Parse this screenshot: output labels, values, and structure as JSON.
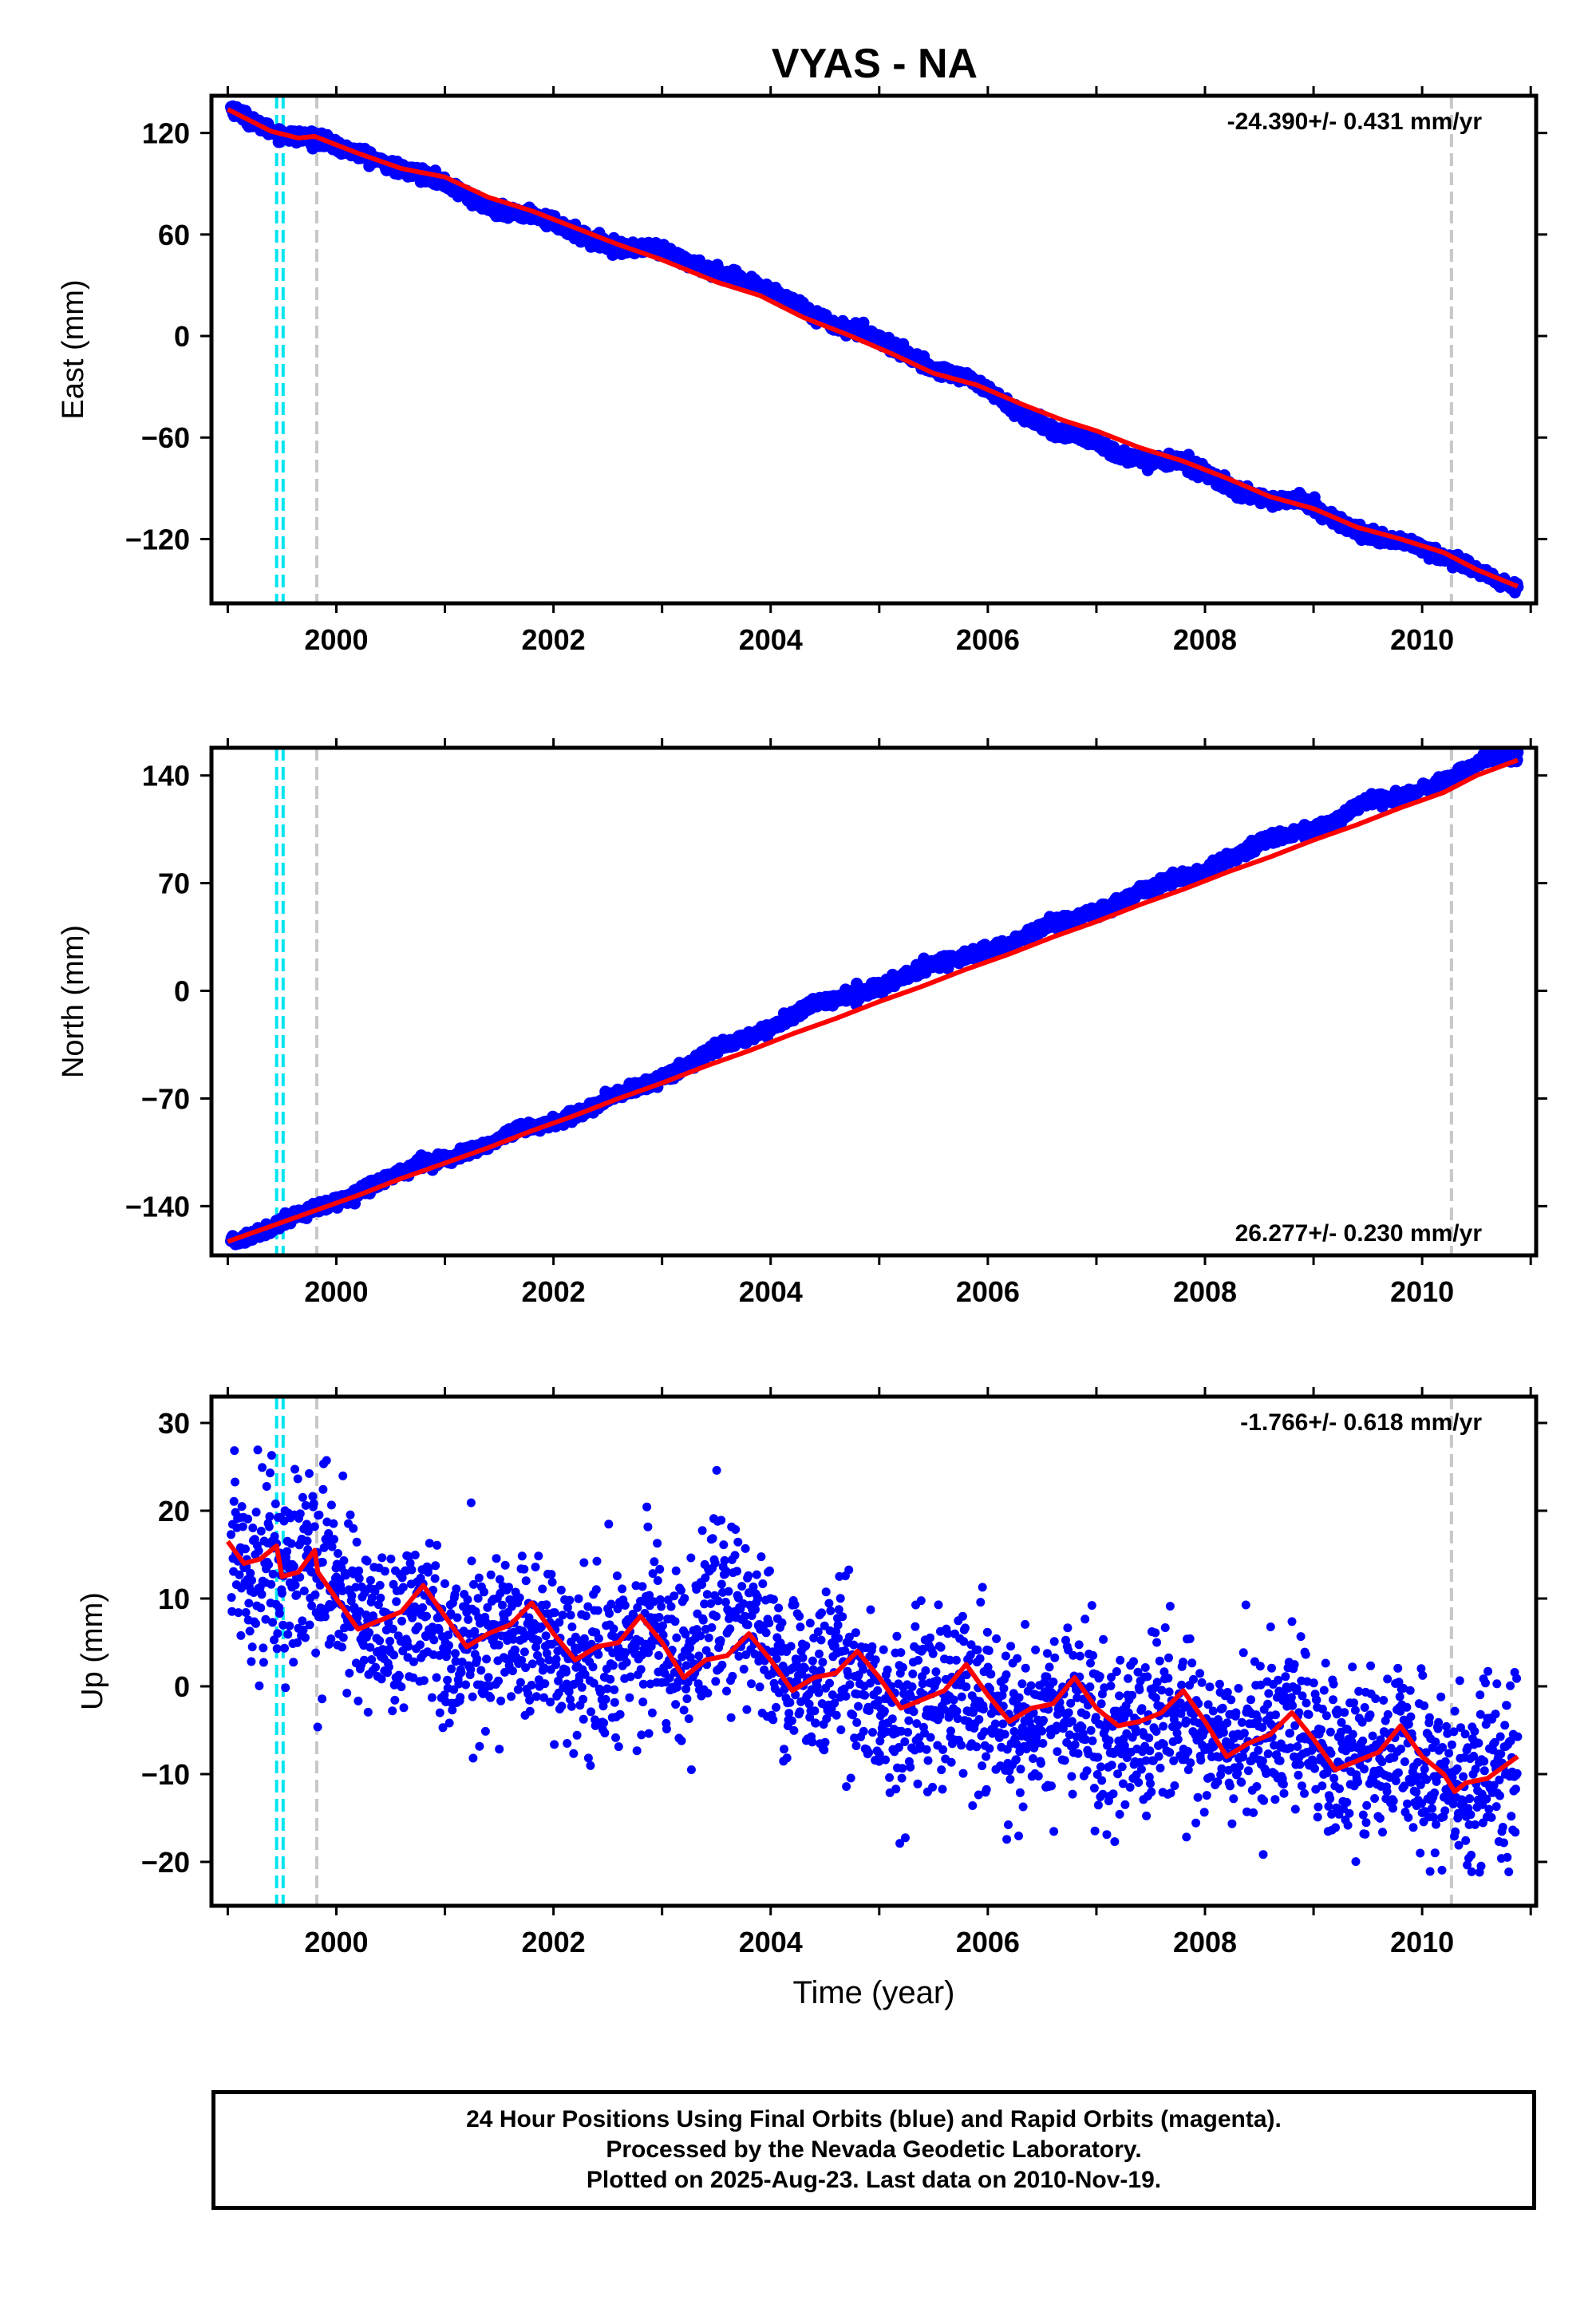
{
  "title": "VYAS - NA",
  "caption": {
    "line1": "24 Hour Positions Using Final Orbits (blue) and Rapid Orbits (magenta).",
    "line2": "Processed by the Nevada Geodetic Laboratory.",
    "line3": "Plotted on 2025-Aug-23. Last data on 2010-Nov-19."
  },
  "colors": {
    "final_orbits": "#0000ff",
    "model_fit": "#ff0000",
    "antenna_change": "#00e5ee",
    "equipment_change": "#c8c8c8",
    "frame": "#000000"
  },
  "chart_data": [
    {
      "type": "scatter",
      "panel": "east",
      "ylabel": "East (mm)",
      "xlabel": "",
      "xlim": [
        1998.85,
        2011.05
      ],
      "ylim": [
        -158,
        142
      ],
      "xticks": [
        2000,
        2002,
        2004,
        2006,
        2008,
        2010
      ],
      "yticks": [
        120,
        60,
        0,
        -60,
        -120
      ],
      "ytick_labels": [
        "120",
        "60",
        "0",
        "−60",
        "−120"
      ],
      "rate_label": "-24.390+/- 0.431 mm/yr",
      "rate_position": "top-right",
      "vlines_cyan": [
        1999.45,
        1999.51
      ],
      "vlines_gray": [
        1999.82,
        2010.27
      ],
      "series": [
        {
          "role": "daily-positions",
          "x": [
            1999.03,
            1999.3,
            1999.5,
            1999.8,
            2000.0,
            2000.3,
            2000.6,
            2000.9,
            2001.2,
            2001.5,
            2001.8,
            2002.0,
            2002.3,
            2002.6,
            2002.9,
            2003.2,
            2003.5,
            2003.8,
            2004.0,
            2004.3,
            2004.6,
            2004.9,
            2005.2,
            2005.5,
            2005.8,
            2006.0,
            2006.3,
            2006.6,
            2006.9,
            2007.2,
            2007.5,
            2007.8,
            2008.0,
            2008.3,
            2008.6,
            2008.9,
            2009.2,
            2009.5,
            2009.8,
            2010.0,
            2010.3,
            2010.6,
            2010.88
          ],
          "y": [
            135,
            124,
            119,
            117,
            112,
            106,
            98,
            94,
            83,
            73,
            72,
            67,
            58,
            52,
            52,
            45,
            38,
            31,
            27,
            17,
            6,
            2,
            -9,
            -20,
            -24,
            -32,
            -46,
            -56,
            -60,
            -70,
            -74,
            -73,
            -81,
            -92,
            -97,
            -97,
            -109,
            -118,
            -121,
            -125,
            -133,
            -141,
            -150
          ]
        },
        {
          "role": "model-fit",
          "x": [
            1999.0,
            1999.4,
            1999.65,
            1999.8,
            2000.2,
            2000.6,
            2001.0,
            2001.4,
            2001.8,
            2002.2,
            2002.6,
            2003.0,
            2003.5,
            2003.9,
            2004.3,
            2004.7,
            2005.1,
            2005.5,
            2005.9,
            2006.3,
            2006.7,
            2007.0,
            2007.4,
            2007.8,
            2008.2,
            2008.6,
            2009.0,
            2009.4,
            2009.8,
            2010.2,
            2010.5,
            2010.88
          ],
          "y": [
            134,
            121,
            117,
            118,
            108,
            99,
            94,
            82,
            74,
            64,
            54,
            45,
            32,
            24,
            11,
            1,
            -10,
            -22,
            -29,
            -40,
            -50,
            -56,
            -66,
            -74,
            -84,
            -95,
            -102,
            -113,
            -120,
            -128,
            -138,
            -148
          ]
        }
      ]
    },
    {
      "type": "scatter",
      "panel": "north",
      "ylabel": "North (mm)",
      "xlabel": "",
      "xlim": [
        1998.85,
        2011.05
      ],
      "ylim": [
        -172,
        158
      ],
      "xticks": [
        2000,
        2002,
        2004,
        2006,
        2008,
        2010
      ],
      "yticks": [
        140,
        70,
        0,
        -70,
        -140
      ],
      "ytick_labels": [
        "140",
        "70",
        "0",
        "−70",
        "−140"
      ],
      "rate_label": "26.277+/- 0.230 mm/yr",
      "rate_position": "bottom-right",
      "vlines_cyan": [
        1999.45,
        1999.51
      ],
      "vlines_gray": [
        1999.82,
        2010.27
      ],
      "series": [
        {
          "role": "daily-positions",
          "x": [
            1999.03,
            1999.3,
            1999.6,
            1999.9,
            2000.2,
            2000.5,
            2000.8,
            2001.1,
            2001.4,
            2001.7,
            2002.0,
            2002.3,
            2002.6,
            2002.9,
            2003.2,
            2003.5,
            2003.8,
            2004.1,
            2004.4,
            2004.7,
            2005.0,
            2005.3,
            2005.6,
            2005.9,
            2006.2,
            2006.5,
            2006.8,
            2007.1,
            2007.4,
            2007.7,
            2008.0,
            2008.3,
            2008.6,
            2008.9,
            2009.2,
            2009.5,
            2009.8,
            2010.1,
            2010.4,
            2010.6,
            2010.88
          ],
          "y": [
            -164,
            -157,
            -146,
            -140,
            -131,
            -120,
            -112,
            -108,
            -100,
            -90,
            -86,
            -78,
            -67,
            -60,
            -50,
            -37,
            -30,
            -21,
            -8,
            -4,
            2,
            11,
            20,
            24,
            30,
            42,
            47,
            54,
            64,
            73,
            77,
            89,
            100,
            103,
            110,
            124,
            126,
            133,
            143,
            151,
            153
          ]
        },
        {
          "role": "model-fit",
          "x": [
            1999.0,
            1999.4,
            1999.8,
            2000.2,
            2000.6,
            2001.0,
            2001.4,
            2001.8,
            2002.2,
            2002.6,
            2003.0,
            2003.4,
            2003.8,
            2004.2,
            2004.6,
            2005.0,
            2005.4,
            2005.8,
            2006.2,
            2006.6,
            2007.0,
            2007.4,
            2007.8,
            2008.2,
            2008.6,
            2009.0,
            2009.4,
            2009.8,
            2010.2,
            2010.5,
            2010.88
          ],
          "y": [
            -163,
            -153,
            -143,
            -133,
            -122,
            -112,
            -102,
            -91,
            -81,
            -70,
            -60,
            -49,
            -39,
            -28,
            -18,
            -7,
            3,
            14,
            24,
            35,
            45,
            56,
            66,
            77,
            87,
            98,
            108,
            119,
            129,
            140,
            150
          ]
        }
      ]
    },
    {
      "type": "scatter",
      "panel": "up",
      "ylabel": "Up (mm)",
      "xlabel": "Time (year)",
      "xlim": [
        1998.85,
        2011.05
      ],
      "ylim": [
        -25,
        33
      ],
      "xticks": [
        2000,
        2002,
        2004,
        2006,
        2008,
        2010
      ],
      "yticks": [
        30,
        20,
        10,
        0,
        -10,
        -20
      ],
      "ytick_labels": [
        "30",
        "20",
        "10",
        "0",
        "−10",
        "−20"
      ],
      "rate_label": "-1.766+/- 0.618 mm/yr",
      "rate_position": "top-right",
      "vlines_cyan": [
        1999.45,
        1999.51
      ],
      "vlines_gray": [
        1999.82,
        2010.27
      ],
      "series": [
        {
          "role": "daily-positions-trend",
          "x": [
            1999.03,
            1999.3,
            1999.6,
            1999.9,
            2000.2,
            2000.5,
            2000.8,
            2001.1,
            2001.4,
            2001.7,
            2002.0,
            2002.3,
            2002.6,
            2002.9,
            2003.2,
            2003.5,
            2003.8,
            2004.1,
            2004.4,
            2004.7,
            2005.0,
            2005.3,
            2005.6,
            2005.9,
            2006.2,
            2006.5,
            2006.8,
            2007.1,
            2007.4,
            2007.7,
            2008.0,
            2008.3,
            2008.6,
            2008.9,
            2009.2,
            2009.5,
            2009.8,
            2010.1,
            2010.4,
            2010.6,
            2010.88
          ],
          "y": [
            16,
            14,
            13,
            14,
            8,
            6,
            9,
            4,
            5,
            7,
            4,
            2,
            4,
            7,
            3,
            9,
            8,
            2,
            0,
            2,
            -3,
            -4,
            -2,
            -1,
            -5,
            -4,
            -2,
            -6,
            -5,
            -3,
            -7,
            -7,
            -5,
            -4,
            -9,
            -9,
            -6,
            -10,
            -12,
            -10,
            -9
          ],
          "spread": [
            6,
            6,
            6,
            6,
            5,
            5,
            5,
            5,
            5,
            5,
            5,
            5,
            5,
            5,
            5,
            5,
            5,
            5,
            5,
            5,
            5,
            5,
            5,
            5,
            5,
            5,
            5,
            5,
            5,
            5,
            5,
            5,
            5,
            5,
            5,
            5,
            5,
            5,
            5,
            5,
            5
          ]
        },
        {
          "role": "model-fit",
          "x": [
            1999.0,
            1999.15,
            1999.3,
            1999.45,
            1999.5,
            1999.65,
            1999.8,
            1999.83,
            2000.0,
            2000.2,
            2000.4,
            2000.6,
            2000.8,
            2001.0,
            2001.2,
            2001.4,
            2001.6,
            2001.8,
            2002.0,
            2002.2,
            2002.4,
            2002.6,
            2002.8,
            2003.0,
            2003.2,
            2003.4,
            2003.6,
            2003.8,
            2004.0,
            2004.2,
            2004.4,
            2004.6,
            2004.8,
            2005.0,
            2005.2,
            2005.4,
            2005.6,
            2005.8,
            2006.0,
            2006.2,
            2006.4,
            2006.6,
            2006.8,
            2007.0,
            2007.2,
            2007.4,
            2007.6,
            2007.8,
            2008.0,
            2008.2,
            2008.4,
            2008.6,
            2008.8,
            2009.0,
            2009.2,
            2009.4,
            2009.6,
            2009.8,
            2010.0,
            2010.2,
            2010.3,
            2010.4,
            2010.6,
            2010.88
          ],
          "y": [
            16.5,
            14,
            14.5,
            16,
            12.5,
            13,
            15.5,
            13,
            10,
            6.5,
            7.5,
            8.5,
            11.5,
            8,
            4.5,
            6,
            7,
            9.5,
            6,
            3,
            4.5,
            5,
            8,
            5,
            1,
            3,
            3.5,
            6,
            3,
            -0.5,
            1,
            1.5,
            4,
            1,
            -2.5,
            -1.5,
            -0.5,
            2.5,
            -1,
            -4,
            -2.5,
            -2,
            1,
            -2.5,
            -4.5,
            -4,
            -3,
            -0.5,
            -4,
            -8,
            -6.5,
            -5.5,
            -3,
            -6,
            -9.5,
            -8.5,
            -7.5,
            -4.5,
            -8,
            -10,
            -12,
            -11,
            -10.5,
            -8
          ]
        }
      ]
    }
  ]
}
